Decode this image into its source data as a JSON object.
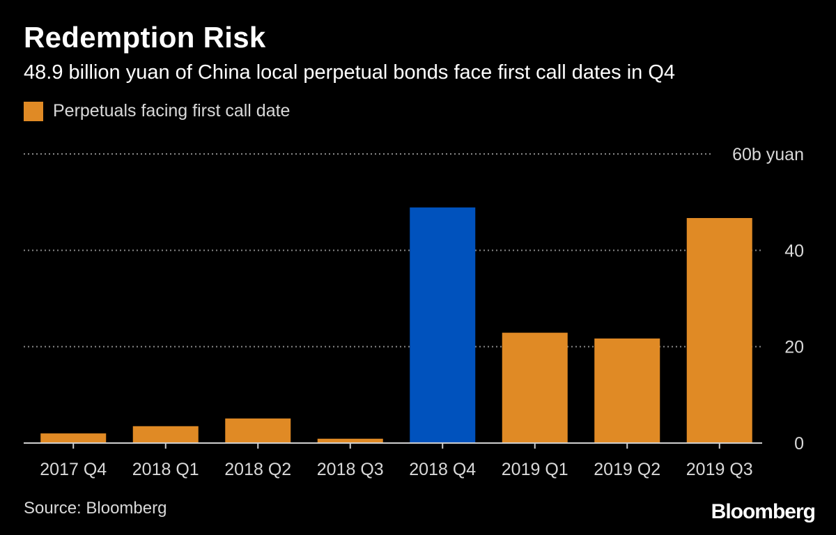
{
  "header": {
    "title": "Redemption Risk",
    "subtitle": "48.9 billion yuan of China local perpetual bonds face first call dates in Q4"
  },
  "footer": {
    "source": "Source: Bloomberg",
    "logo_text": "Bloomberg"
  },
  "colors": {
    "background": "#000000",
    "bar_default": "#e08a25",
    "bar_highlight": "#0052bd",
    "gridline": "#8a8a8a",
    "text_primary": "#ffffff",
    "text_secondary": "#d9d9d9"
  },
  "chart_data": {
    "type": "bar",
    "title": "Redemption Risk",
    "subtitle": "48.9 billion yuan of China local perpetual bonds face first call dates in Q4",
    "xlabel": "",
    "ylabel": "",
    "categories": [
      "2017 Q4",
      "2018 Q1",
      "2018 Q2",
      "2018 Q3",
      "2018 Q4",
      "2019 Q1",
      "2019 Q2",
      "2019 Q3"
    ],
    "series": [
      {
        "name": "Perpetuals facing first call date",
        "values": [
          2.0,
          3.5,
          5.1,
          0.9,
          48.9,
          22.9,
          21.7,
          46.7
        ]
      }
    ],
    "highlight_index": 4,
    "ylim": [
      0,
      60
    ],
    "yticks": [
      0,
      20,
      40,
      60
    ],
    "ytick_labels": [
      "0",
      "20",
      "40",
      "60b yuan"
    ],
    "grid": true,
    "legend_position": "top-left",
    "y_axis_side": "right"
  }
}
